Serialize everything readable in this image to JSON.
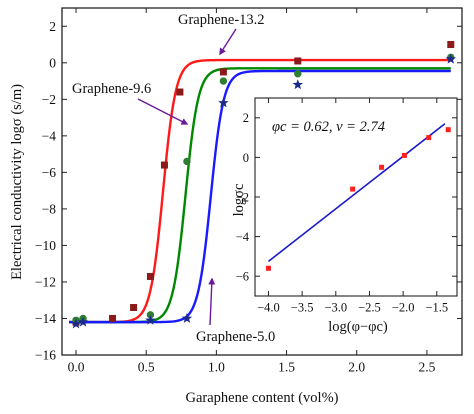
{
  "chart_data": [
    {
      "type": "scatter",
      "xlabel": "Garaphene content (vol%)",
      "ylabel": "Electrical conductivity logσ (s/m)",
      "xlim": [
        -0.1,
        2.75
      ],
      "ylim": [
        -16,
        3
      ],
      "xticks": [
        0.0,
        0.5,
        1.0,
        1.5,
        2.0,
        2.5
      ],
      "xtick_labels": [
        "0.0",
        "0.5",
        "1.0",
        "1.5",
        "2.0",
        "2.5"
      ],
      "yticks": [
        -16,
        -14,
        -12,
        -10,
        -8,
        -6,
        -4,
        -2,
        0,
        2
      ],
      "ytick_labels": [
        "−16",
        "−14",
        "−12",
        "−10",
        "−8",
        "−6",
        "−4",
        "−2",
        "0",
        "2"
      ],
      "series": [
        {
          "name": "Graphene-13.2",
          "color": "#ff1a1a",
          "marker_color": "#8b1a1a",
          "marker": "square",
          "x": [
            0.0,
            0.26,
            0.41,
            0.53,
            0.63,
            0.74,
            1.05,
            1.58,
            2.67
          ],
          "y": [
            -14.2,
            -14.0,
            -13.4,
            -11.7,
            -5.6,
            -1.6,
            -0.5,
            0.1,
            1.0
          ],
          "fit": {
            "lower": -14.2,
            "upper": 0.15,
            "center": 0.62
          }
        },
        {
          "name": "Graphene-9.6",
          "color": "#008800",
          "marker_color": "#2e7d32",
          "marker": "circle",
          "x": [
            0.0,
            0.05,
            0.53,
            0.79,
            1.05,
            1.58,
            2.67
          ],
          "y": [
            -14.1,
            -14.0,
            -13.8,
            -5.4,
            -1.0,
            -0.6,
            0.3
          ],
          "fit": {
            "lower": -14.2,
            "upper": -0.3,
            "center": 0.78
          }
        },
        {
          "name": "Graphene-5.0",
          "color": "#1a1aff",
          "marker_color": "#1a2a8a",
          "marker": "star",
          "x": [
            0.0,
            0.05,
            0.53,
            0.79,
            1.05,
            1.58,
            2.67
          ],
          "y": [
            -14.3,
            -14.2,
            -14.1,
            -14.0,
            -2.2,
            -1.2,
            0.2
          ],
          "fit": {
            "lower": -14.2,
            "upper": -0.45,
            "center": 0.96
          }
        }
      ],
      "annotations": [
        "Graphene-13.2",
        "Graphene-9.6",
        "Graphene-5.0"
      ]
    },
    {
      "type": "scatter",
      "xlabel": "log(φ−φc)",
      "ylabel": "logσc",
      "annotation": "φc = 0.62, v = 2.74",
      "xlim": [
        -4.2,
        -1.2
      ],
      "ylim": [
        -7,
        3
      ],
      "xticks": [
        -4.0,
        -3.5,
        -3.0,
        -2.5,
        -2.0,
        -1.5
      ],
      "xtick_labels": [
        "−4.0",
        "−3.5",
        "−3.0",
        "−2.5",
        "−2.0",
        "−1.5"
      ],
      "yticks": [
        -6,
        -4,
        -2,
        0,
        2
      ],
      "ytick_labels": [
        "−6",
        "−4",
        "−2",
        "0",
        "2"
      ],
      "points": {
        "color": "#ff2020",
        "x": [
          -4.0,
          -2.75,
          -2.32,
          -1.98,
          -1.62,
          -1.33
        ],
        "y": [
          -5.6,
          -1.6,
          -0.5,
          0.1,
          1.0,
          1.4
        ]
      },
      "fit_line": {
        "color": "#1a1acc",
        "x": [
          -4.0,
          -1.38
        ],
        "y": [
          -5.25,
          1.7
        ]
      }
    }
  ]
}
